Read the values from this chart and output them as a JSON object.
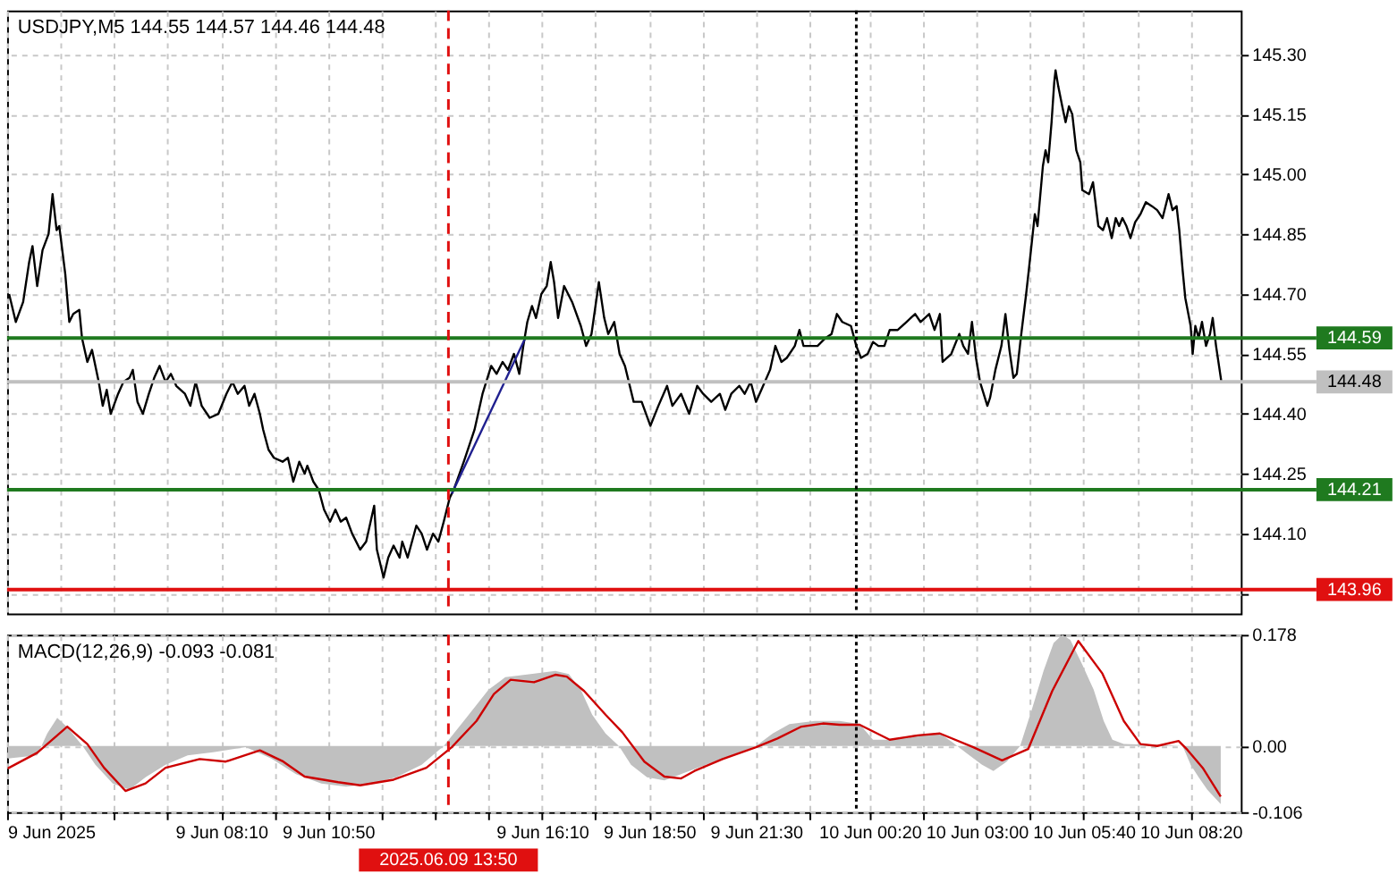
{
  "chart_data": [
    {
      "type": "line",
      "title": "USDJPY,M5  144.55 144.57 144.46 144.48",
      "series": [
        {
          "color": "#000000",
          "x": [
            "2025-06-09T02:53",
            "2025-06-09T03:03",
            "2025-06-09T03:14",
            "2025-06-09T03:23",
            "2025-06-09T03:28",
            "2025-06-09T03:35",
            "2025-06-09T03:43",
            "2025-06-09T03:52",
            "2025-06-09T03:58",
            "2025-06-09T04:04",
            "2025-06-09T04:08",
            "2025-06-09T04:17",
            "2025-06-09T04:23",
            "2025-06-09T04:29",
            "2025-06-09T04:38",
            "2025-06-09T04:42",
            "2025-06-09T04:50",
            "2025-06-09T04:57",
            "2025-06-09T05:07",
            "2025-06-09T05:13",
            "2025-06-09T05:19",
            "2025-06-09T05:25",
            "2025-06-09T05:36",
            "2025-06-09T05:44",
            "2025-06-09T05:53",
            "2025-06-09T05:58",
            "2025-06-09T06:05",
            "2025-06-09T06:13",
            "2025-06-09T06:22",
            "2025-06-09T06:30",
            "2025-06-09T06:38",
            "2025-06-09T06:47",
            "2025-06-09T06:55",
            "2025-06-09T07:03",
            "2025-06-09T07:16",
            "2025-06-09T07:24",
            "2025-06-09T07:32",
            "2025-06-09T07:41",
            "2025-06-09T07:53",
            "2025-06-09T08:06",
            "2025-06-09T08:18",
            "2025-06-09T08:27",
            "2025-06-09T08:35",
            "2025-06-09T08:45",
            "2025-06-09T08:52",
            "2025-06-09T09:00",
            "2025-06-09T09:08",
            "2025-06-09T09:13",
            "2025-06-09T09:21",
            "2025-06-09T09:29",
            "2025-06-09T09:42",
            "2025-06-09T09:50",
            "2025-06-09T09:58",
            "2025-06-09T10:07",
            "2025-06-09T10:15",
            "2025-06-09T10:19",
            "2025-06-09T10:28",
            "2025-06-09T10:36",
            "2025-06-09T10:44",
            "2025-06-09T10:53",
            "2025-06-09T11:01",
            "2025-06-09T11:09",
            "2025-06-09T11:17",
            "2025-06-09T11:26",
            "2025-06-09T11:38",
            "2025-06-09T11:47",
            "2025-06-09T11:59",
            "2025-06-09T12:03",
            "2025-06-09T12:13",
            "2025-06-09T12:20",
            "2025-06-09T12:28",
            "2025-06-09T12:37",
            "2025-06-09T12:41",
            "2025-06-09T12:49",
            "2025-06-09T13:02",
            "2025-06-09T13:10",
            "2025-06-09T13:18",
            "2025-06-09T13:27",
            "2025-06-09T13:35",
            "2025-06-09T13:43",
            "2025-06-09T13:52",
            "2025-06-09T13:58",
            "2025-06-09T14:13",
            "2025-06-09T14:29",
            "2025-06-09T14:41",
            "2025-06-09T14:54",
            "2025-06-09T15:02",
            "2025-06-09T15:11",
            "2025-06-09T15:19",
            "2025-06-09T15:28",
            "2025-06-09T15:36",
            "2025-06-09T15:42",
            "2025-06-09T15:48",
            "2025-06-09T15:55",
            "2025-06-09T16:01",
            "2025-06-09T16:09",
            "2025-06-09T16:17",
            "2025-06-09T16:23",
            "2025-06-09T16:28",
            "2025-06-09T16:34",
            "2025-06-09T16:43",
            "2025-06-09T16:55",
            "2025-06-09T17:08",
            "2025-06-09T17:16",
            "2025-06-09T17:24",
            "2025-06-09T17:35",
            "2025-06-09T17:43",
            "2025-06-09T17:49",
            "2025-06-09T17:58",
            "2025-06-09T18:06",
            "2025-06-09T18:14",
            "2025-06-09T18:27",
            "2025-06-09T18:39",
            "2025-06-09T18:52",
            "2025-06-09T19:04",
            "2025-06-09T19:17",
            "2025-06-09T19:25",
            "2025-06-09T19:38",
            "2025-06-09T19:50",
            "2025-06-09T20:02",
            "2025-06-09T20:11",
            "2025-06-09T20:23",
            "2025-06-09T20:36",
            "2025-06-09T20:44",
            "2025-06-09T20:53",
            "2025-06-09T21:05",
            "2025-06-09T21:13",
            "2025-06-09T21:22",
            "2025-06-09T21:30",
            "2025-06-09T21:38",
            "2025-06-09T21:51",
            "2025-06-09T21:59",
            "2025-06-09T22:08",
            "2025-06-09T22:16",
            "2025-06-09T22:28",
            "2025-06-09T22:35",
            "2025-06-09T22:41",
            "2025-06-09T23:02",
            "2025-06-09T23:14",
            "2025-06-09T23:23",
            "2025-06-09T23:31",
            "2025-06-09T23:39",
            "2025-06-09T23:52",
            "2025-06-10T00:00",
            "2025-06-10T00:07",
            "2025-06-10T00:17",
            "2025-06-10T00:25",
            "2025-06-10T00:33",
            "2025-06-10T00:42",
            "2025-06-10T00:50",
            "2025-06-10T01:02",
            "2025-06-10T01:15",
            "2025-06-10T01:28",
            "2025-06-10T01:36",
            "2025-06-10T01:49",
            "2025-06-10T01:57",
            "2025-06-10T02:05",
            "2025-06-10T02:09",
            "2025-06-10T02:22",
            "2025-06-10T02:34",
            "2025-06-10T02:40",
            "2025-06-10T02:47",
            "2025-06-10T02:53",
            "2025-06-10T02:59",
            "2025-06-10T03:05",
            "2025-06-10T03:16",
            "2025-06-10T03:20",
            "2025-06-10T03:28",
            "2025-06-10T03:37",
            "2025-06-10T03:43",
            "2025-06-10T03:49",
            "2025-06-10T03:55",
            "2025-06-10T04:00",
            "2025-06-10T04:06",
            "2025-06-10T04:14",
            "2025-06-10T04:18",
            "2025-06-10T04:27",
            "2025-06-10T04:31",
            "2025-06-10T04:39",
            "2025-06-10T04:43",
            "2025-06-10T04:47",
            "2025-06-10T04:52",
            "2025-06-10T04:56",
            "2025-06-10T04:58",
            "2025-06-10T05:02",
            "2025-06-10T05:08",
            "2025-06-10T05:13",
            "2025-06-10T05:18",
            "2025-06-10T05:23",
            "2025-06-10T05:29",
            "2025-06-10T05:35",
            "2025-06-10T05:38",
            "2025-06-10T05:48",
            "2025-06-10T05:54",
            "2025-06-10T06:02",
            "2025-06-10T06:09",
            "2025-06-10T06:15",
            "2025-06-10T06:22",
            "2025-06-10T06:28",
            "2025-06-10T06:33",
            "2025-06-10T06:38",
            "2025-06-10T06:44",
            "2025-06-10T06:50",
            "2025-06-10T06:57",
            "2025-06-10T07:05",
            "2025-06-10T07:13",
            "2025-06-10T07:22",
            "2025-06-10T07:30",
            "2025-06-10T07:38",
            "2025-06-10T07:47",
            "2025-06-10T07:53",
            "2025-06-10T07:59",
            "2025-06-10T08:03",
            "2025-06-10T08:08",
            "2025-06-10T08:12",
            "2025-06-10T08:20",
            "2025-06-10T08:23",
            "2025-06-10T08:27",
            "2025-06-10T08:32",
            "2025-06-10T08:37",
            "2025-06-10T08:43",
            "2025-06-10T08:49",
            "2025-06-10T08:53",
            "2025-06-10T08:58",
            "2025-06-10T09:06"
          ],
          "values": [
            144.7,
            144.63,
            144.68,
            144.78,
            144.82,
            144.72,
            144.81,
            144.85,
            144.95,
            144.86,
            144.87,
            144.75,
            144.63,
            144.65,
            144.66,
            144.59,
            144.53,
            144.56,
            144.48,
            144.42,
            144.46,
            144.4,
            144.45,
            144.48,
            144.49,
            144.51,
            144.43,
            144.4,
            144.45,
            144.49,
            144.52,
            144.48,
            144.5,
            144.47,
            144.45,
            144.42,
            144.48,
            144.42,
            144.39,
            144.4,
            144.45,
            144.48,
            144.45,
            144.47,
            144.42,
            144.45,
            144.4,
            144.36,
            144.31,
            144.29,
            144.28,
            144.29,
            144.23,
            144.28,
            144.25,
            144.27,
            144.23,
            144.21,
            144.16,
            144.13,
            144.16,
            144.13,
            144.14,
            144.1,
            144.06,
            144.08,
            144.17,
            144.06,
            143.99,
            144.04,
            144.07,
            144.04,
            144.08,
            144.04,
            144.12,
            144.1,
            144.06,
            144.1,
            144.08,
            144.13,
            144.19,
            144.21,
            144.28,
            144.36,
            144.45,
            144.52,
            144.5,
            144.53,
            144.51,
            144.55,
            144.5,
            144.57,
            144.63,
            144.67,
            144.64,
            144.7,
            144.72,
            144.78,
            144.73,
            144.64,
            144.72,
            144.68,
            144.62,
            144.57,
            144.6,
            144.73,
            144.64,
            144.6,
            144.63,
            144.55,
            144.52,
            144.43,
            144.43,
            144.37,
            144.42,
            144.47,
            144.42,
            144.45,
            144.4,
            144.47,
            144.45,
            144.43,
            144.45,
            144.41,
            144.45,
            144.47,
            144.45,
            144.48,
            144.43,
            144.46,
            144.51,
            144.57,
            144.53,
            144.54,
            144.57,
            144.61,
            144.57,
            144.57,
            144.59,
            144.6,
            144.65,
            144.63,
            144.62,
            144.57,
            144.54,
            144.55,
            144.58,
            144.57,
            144.57,
            144.61,
            144.61,
            144.63,
            144.65,
            144.63,
            144.65,
            144.61,
            144.65,
            144.53,
            144.55,
            144.6,
            144.57,
            144.55,
            144.63,
            144.54,
            144.48,
            144.42,
            144.44,
            144.51,
            144.57,
            144.65,
            144.56,
            144.49,
            144.5,
            144.59,
            144.7,
            144.76,
            144.9,
            144.87,
            145.02,
            145.06,
            145.03,
            145.13,
            145.23,
            145.26,
            145.22,
            145.17,
            145.13,
            145.17,
            145.15,
            145.06,
            145.03,
            144.96,
            144.95,
            144.98,
            144.87,
            144.86,
            144.89,
            144.84,
            144.89,
            144.87,
            144.89,
            144.87,
            144.84,
            144.88,
            144.9,
            144.93,
            144.92,
            144.91,
            144.89,
            144.95,
            144.91,
            144.92,
            144.86,
            144.76,
            144.69,
            144.62,
            144.55,
            144.62,
            144.59,
            144.63,
            144.57,
            144.6,
            144.64,
            144.57,
            144.48
          ]
        },
        {
          "type": "line",
          "color": "#1f1f8f",
          "x": [
            "2025-06-09T13:55",
            "2025-06-09T15:45"
          ],
          "values": [
            144.2,
            144.59
          ]
        }
      ],
      "xlim": [
        "2025-06-09T02:50",
        "2025-06-10T09:35"
      ],
      "xticks": [
        {
          "value": "2025-06-09T02:50",
          "label": null
        },
        {
          "value": "2025-06-09T04:10",
          "label": null
        },
        {
          "value": "2025-06-09T05:30",
          "label": null
        },
        {
          "value": "2025-06-09T06:50",
          "label": null
        },
        {
          "value": "2025-06-09T08:10",
          "label": null
        },
        {
          "value": "2025-06-09T09:30",
          "label": null
        },
        {
          "value": "2025-06-09T10:50",
          "label": null
        },
        {
          "value": "2025-06-09T12:10",
          "label": null
        },
        {
          "value": "2025-06-09T13:30",
          "label": null
        },
        {
          "value": "2025-06-09T14:50",
          "label": null
        },
        {
          "value": "2025-06-09T16:10",
          "label": null
        },
        {
          "value": "2025-06-09T17:30",
          "label": null
        },
        {
          "value": "2025-06-09T18:50",
          "label": null
        },
        {
          "value": "2025-06-09T20:10",
          "label": null
        },
        {
          "value": "2025-06-09T21:30",
          "label": null
        },
        {
          "value": "2025-06-09T22:50",
          "label": null
        },
        {
          "value": "2025-06-10T00:20",
          "label": null
        },
        {
          "value": "2025-06-10T01:40",
          "label": null
        },
        {
          "value": "2025-06-10T03:00",
          "label": null
        },
        {
          "value": "2025-06-10T04:20",
          "label": null
        },
        {
          "value": "2025-06-10T05:40",
          "label": null
        },
        {
          "value": "2025-06-10T07:00",
          "label": null
        },
        {
          "value": "2025-06-10T08:20",
          "label": null
        }
      ],
      "ylim": [
        143.9,
        145.41
      ],
      "yticks": [
        {
          "value": 145.3,
          "label": "145.30"
        },
        145.15,
        {
          "value": 145.0,
          "label": "145.00"
        },
        144.85,
        {
          "value": 144.7,
          "label": "144.70"
        },
        144.55,
        {
          "value": 144.4,
          "label": "144.40"
        },
        144.25,
        {
          "value": 144.1,
          "label": "144.10"
        },
        {
          "value": 143.95,
          "label": null
        }
      ],
      "grid": true,
      "tick_labels": "y",
      "ref_lines": [
        {
          "axis": "y",
          "value": 144.59,
          "label": "144.59",
          "color": "#1f7a1f"
        },
        {
          "axis": "y",
          "value": 144.48,
          "label": "144.48",
          "color": "#c0c0c0"
        },
        {
          "axis": "y",
          "value": 144.21,
          "label": "144.21",
          "color": "#1f7a1f"
        },
        {
          "axis": "y",
          "value": 143.96,
          "label": "143.96",
          "color": "#e01010"
        },
        {
          "axis": "x",
          "value": "2025-06-09T13:50",
          "color": "#e01010",
          "line_style": "dashed"
        },
        {
          "axis": "x",
          "value": "2025-06-10T00:00",
          "color": "#000000",
          "line_style": "dotted"
        }
      ]
    },
    {
      "type": "line",
      "title": "MACD(12,26,9) -0.093 -0.081",
      "series": [
        {
          "type": "area",
          "color": "#c0c0c0",
          "x": [
            "2025-06-09T02:51",
            "2025-06-09T03:35",
            "2025-06-09T03:50",
            "2025-06-09T04:05",
            "2025-06-09T04:20",
            "2025-06-09T04:43",
            "2025-06-09T05:02",
            "2025-06-09T05:28",
            "2025-06-09T05:53",
            "2025-06-09T06:17",
            "2025-06-09T06:47",
            "2025-06-09T07:20",
            "2025-06-09T07:58",
            "2025-06-09T08:47",
            "2025-06-09T09:25",
            "2025-06-09T10:02",
            "2025-06-09T10:40",
            "2025-06-09T11:17",
            "2025-06-09T11:55",
            "2025-06-09T12:32",
            "2025-06-09T13:10",
            "2025-06-09T13:43",
            "2025-06-09T14:13",
            "2025-06-09T14:50",
            "2025-06-09T15:15",
            "2025-06-09T15:53",
            "2025-06-09T16:30",
            "2025-06-09T16:50",
            "2025-06-09T17:08",
            "2025-06-09T17:25",
            "2025-06-09T17:45",
            "2025-06-09T18:05",
            "2025-06-09T18:23",
            "2025-06-09T18:47",
            "2025-06-09T19:13",
            "2025-06-09T19:38",
            "2025-06-09T20:15",
            "2025-06-09T20:53",
            "2025-06-09T21:30",
            "2025-06-09T21:55",
            "2025-06-09T22:20",
            "2025-06-09T22:58",
            "2025-06-09T23:35",
            "2025-06-10T00:05",
            "2025-06-10T00:25",
            "2025-06-10T00:50",
            "2025-06-10T01:28",
            "2025-06-10T02:05",
            "2025-06-10T02:25",
            "2025-06-10T02:43",
            "2025-06-10T03:08",
            "2025-06-10T03:25",
            "2025-06-10T03:45",
            "2025-06-10T04:05",
            "2025-06-10T04:23",
            "2025-06-10T04:40",
            "2025-06-10T04:55",
            "2025-06-10T05:08",
            "2025-06-10T05:20",
            "2025-06-10T05:38",
            "2025-06-10T05:55",
            "2025-06-10T06:10",
            "2025-06-10T06:23",
            "2025-06-10T06:40",
            "2025-06-10T07:30",
            "2025-06-10T08:08",
            "2025-06-10T08:20",
            "2025-06-10T08:32",
            "2025-06-10T08:45",
            "2025-06-10T09:05"
          ],
          "values": [
            -0.02,
            -0.015,
            0.02,
            0.045,
            0.03,
            0.0,
            -0.03,
            -0.06,
            -0.07,
            -0.05,
            -0.03,
            -0.015,
            -0.01,
            -0.002,
            -0.02,
            -0.045,
            -0.06,
            -0.065,
            -0.06,
            -0.05,
            -0.03,
            0.0,
            0.04,
            0.09,
            0.11,
            0.115,
            0.12,
            0.115,
            0.09,
            0.05,
            0.02,
            0.0,
            -0.03,
            -0.05,
            -0.055,
            -0.045,
            -0.03,
            -0.015,
            0.0,
            0.02,
            0.035,
            0.04,
            0.04,
            0.035,
            0.01,
            0.01,
            0.018,
            0.02,
            0.005,
            -0.01,
            -0.03,
            -0.04,
            -0.025,
            0.0,
            0.06,
            0.12,
            0.165,
            0.178,
            0.17,
            0.13,
            0.09,
            0.04,
            0.01,
            0.003,
            0.002,
            0.0,
            -0.03,
            -0.05,
            -0.07,
            -0.093
          ]
        },
        {
          "type": "line",
          "color": "#cc0000",
          "x": [
            "2025-06-09T02:51",
            "2025-06-09T03:35",
            "2025-06-09T04:20",
            "2025-06-09T04:50",
            "2025-06-09T05:15",
            "2025-06-09T05:47",
            "2025-06-09T06:17",
            "2025-06-09T06:47",
            "2025-06-09T07:38",
            "2025-06-09T08:17",
            "2025-06-09T09:08",
            "2025-06-09T09:43",
            "2025-06-09T10:15",
            "2025-06-09T11:05",
            "2025-06-09T11:38",
            "2025-06-09T12:28",
            "2025-06-09T13:17",
            "2025-06-09T13:55",
            "2025-06-09T14:32",
            "2025-06-09T14:58",
            "2025-06-09T15:23",
            "2025-06-09T15:58",
            "2025-06-09T16:30",
            "2025-06-09T16:47",
            "2025-06-09T17:13",
            "2025-06-09T17:45",
            "2025-06-09T18:10",
            "2025-06-09T18:43",
            "2025-06-09T19:13",
            "2025-06-09T19:38",
            "2025-06-09T19:58",
            "2025-06-09T20:40",
            "2025-06-09T21:30",
            "2025-06-09T22:02",
            "2025-06-09T22:38",
            "2025-06-09T23:10",
            "2025-06-09T23:35",
            "2025-06-10T00:05",
            "2025-06-10T00:50",
            "2025-06-10T01:32",
            "2025-06-10T02:05",
            "2025-06-10T02:55",
            "2025-06-10T03:38",
            "2025-06-10T04:17",
            "2025-06-10T04:53",
            "2025-06-10T05:32",
            "2025-06-10T06:08",
            "2025-06-10T06:40",
            "2025-06-10T07:05",
            "2025-06-10T07:30",
            "2025-06-10T08:02",
            "2025-06-10T08:15",
            "2025-06-10T08:38",
            "2025-06-10T09:05"
          ],
          "values": [
            -0.036,
            -0.011,
            0.031,
            0.003,
            -0.035,
            -0.072,
            -0.06,
            -0.035,
            -0.021,
            -0.025,
            -0.007,
            -0.025,
            -0.049,
            -0.058,
            -0.063,
            -0.054,
            -0.035,
            -0.002,
            0.04,
            0.083,
            0.106,
            0.102,
            0.114,
            0.111,
            0.088,
            0.05,
            0.022,
            -0.025,
            -0.049,
            -0.052,
            -0.04,
            -0.021,
            -0.002,
            0.012,
            0.031,
            0.036,
            0.034,
            0.034,
            0.01,
            0.017,
            0.02,
            -0.002,
            -0.023,
            -0.005,
            0.088,
            0.168,
            0.116,
            0.04,
            0.003,
            0.0,
            0.008,
            -0.006,
            -0.035,
            -0.081
          ]
        }
      ],
      "xlim": [
        "2025-06-09T02:50",
        "2025-06-10T09:35"
      ],
      "xticks": [
        {
          "value": "2025-06-09T02:50",
          "label": "9 Jun 2025"
        },
        {
          "value": "2025-06-09T04:10",
          "label": null
        },
        {
          "value": "2025-06-09T05:30",
          "label": null
        },
        {
          "value": "2025-06-09T06:50",
          "label": null
        },
        {
          "value": "2025-06-09T08:10",
          "label": "9 Jun 08:10"
        },
        {
          "value": "2025-06-09T09:30",
          "label": null
        },
        {
          "value": "2025-06-09T10:50",
          "label": "9 Jun 10:50"
        },
        {
          "value": "2025-06-09T12:10",
          "label": null
        },
        {
          "value": "2025-06-09T13:30",
          "label": null
        },
        {
          "value": "2025-06-09T14:50",
          "label": null
        },
        {
          "value": "2025-06-09T16:10",
          "label": "9 Jun 16:10"
        },
        {
          "value": "2025-06-09T17:30",
          "label": null
        },
        {
          "value": "2025-06-09T18:50",
          "label": "9 Jun 18:50"
        },
        {
          "value": "2025-06-09T20:10",
          "label": null
        },
        {
          "value": "2025-06-09T21:30",
          "label": "9 Jun 21:30"
        },
        {
          "value": "2025-06-09T22:50",
          "label": null
        },
        {
          "value": "2025-06-10T00:20",
          "label": "10 Jun 00:20"
        },
        {
          "value": "2025-06-10T01:40",
          "label": null
        },
        {
          "value": "2025-06-10T03:00",
          "label": "10 Jun 03:00"
        },
        {
          "value": "2025-06-10T04:20",
          "label": null
        },
        {
          "value": "2025-06-10T05:40",
          "label": "10 Jun 05:40"
        },
        {
          "value": "2025-06-10T07:00",
          "label": null
        },
        {
          "value": "2025-06-10T08:20",
          "label": "10 Jun 08:20"
        }
      ],
      "ylim": [
        -0.106,
        0.178
      ],
      "yticks": [
        0.178,
        {
          "value": 0,
          "label": "0.00"
        },
        -0.106
      ],
      "grid": true,
      "ref_lines": [
        {
          "axis": "x",
          "value": "2025-06-09T13:50",
          "label": "2025.06.09 13:50",
          "color": "#e01010",
          "line_style": "dashed"
        },
        {
          "axis": "x",
          "value": "2025-06-10T00:00",
          "color": "#000000",
          "line_style": "dotted"
        }
      ]
    }
  ]
}
